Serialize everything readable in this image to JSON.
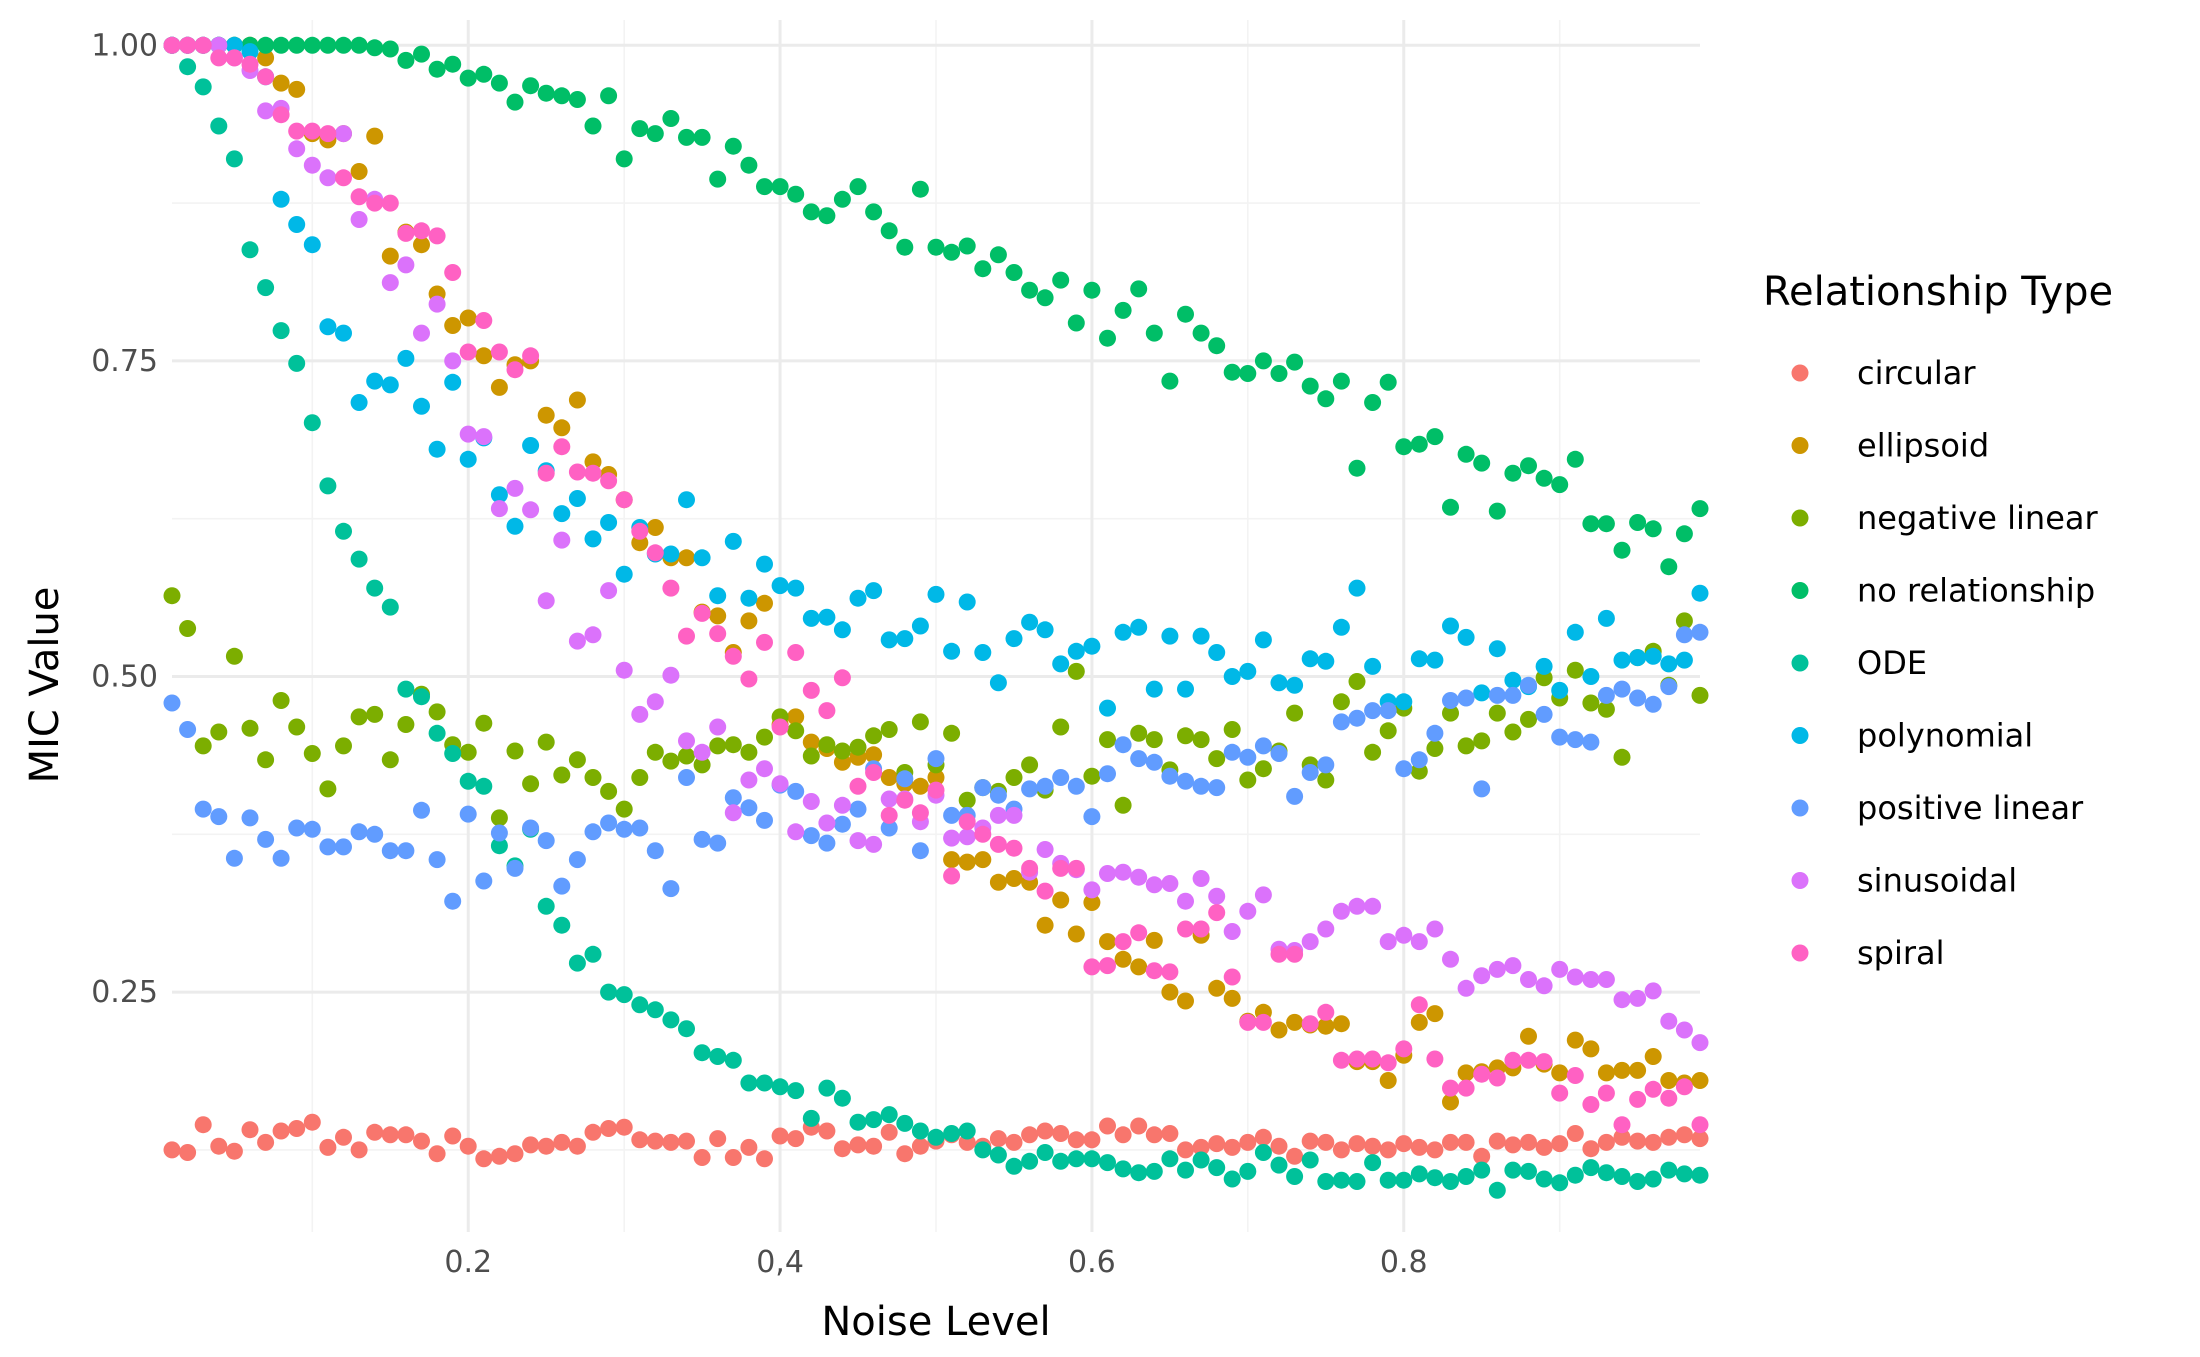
{
  "chart_data": {
    "type": "scatter",
    "title": "",
    "xlabel": "Noise Level",
    "ylabel": "MIC Value",
    "xlim": [
      0.01,
      0.99
    ],
    "ylim": [
      0.06,
      1.02
    ],
    "x_ticks": [
      0.2,
      0.4,
      0.6,
      0.8
    ],
    "x_tick_labels": [
      "0.2",
      "0,4",
      "0.6",
      "0.8"
    ],
    "y_ticks": [
      0.25,
      0.5,
      0.75,
      1.0
    ],
    "y_tick_labels": [
      "0.25",
      "0.50",
      "0.75",
      "1.00"
    ],
    "grid": true,
    "legend": {
      "title": "Relationship Type",
      "position": "right"
    },
    "x_start": 0.01,
    "x_step": 0.01,
    "series": [
      {
        "name": "circular",
        "color": "#F8766D",
        "values": [
          0.125,
          0.123,
          0.145,
          0.128,
          0.124,
          0.141,
          0.131,
          0.14,
          0.142,
          0.147,
          0.127,
          0.135,
          0.125,
          0.139,
          0.137,
          0.137,
          0.132,
          0.122,
          0.136,
          0.128,
          0.118,
          0.12,
          0.122,
          0.129,
          0.128,
          0.131,
          0.128,
          0.139,
          0.142,
          0.143,
          0.133,
          0.132,
          0.131,
          0.132,
          0.119,
          0.134,
          0.119,
          0.127,
          0.118,
          0.136,
          0.134,
          0.143,
          0.14,
          0.126,
          0.129,
          0.128,
          0.139,
          0.122,
          0.128,
          0.132,
          0.137,
          0.131,
          0.128,
          0.134,
          0.131,
          0.137,
          0.14,
          0.138,
          0.133,
          0.133,
          0.144,
          0.137,
          0.144,
          0.137,
          0.138,
          0.125,
          0.127,
          0.13,
          0.127,
          0.131,
          0.135,
          0.128,
          0.12,
          0.132,
          0.131,
          0.125,
          0.13,
          0.128,
          0.125,
          0.13,
          0.127,
          0.125,
          0.131,
          0.131,
          0.12,
          0.132,
          0.129,
          0.131,
          0.127,
          0.13,
          0.138,
          0.126,
          0.131,
          0.135,
          0.132,
          0.131,
          0.135,
          0.137,
          0.134
        ]
      },
      {
        "name": "ellipsoid",
        "color": "#CD9600",
        "values": [
          1.0,
          1.0,
          1.0,
          1.0,
          1.0,
          1.0,
          0.99,
          0.97,
          0.965,
          0.93,
          0.925,
          0.93,
          0.9,
          0.928,
          0.833,
          0.852,
          0.842,
          0.803,
          0.778,
          0.784,
          0.754,
          0.729,
          0.747,
          0.75,
          0.707,
          0.697,
          0.719,
          0.67,
          0.66,
          0.64,
          0.606,
          0.618,
          0.594,
          0.594,
          0.551,
          0.548,
          0.519,
          0.544,
          0.558,
          0.462,
          0.468,
          0.448,
          0.443,
          0.432,
          0.436,
          0.438,
          0.42,
          0.415,
          0.413,
          0.42,
          0.355,
          0.353,
          0.355,
          0.337,
          0.34,
          0.337,
          0.303,
          0.323,
          0.296,
          0.321,
          0.29,
          0.276,
          0.27,
          0.291,
          0.25,
          0.243,
          0.295,
          0.253,
          0.245,
          0.227,
          0.234,
          0.22,
          0.226,
          0.224,
          0.223,
          0.225,
          0.195,
          0.195,
          0.18,
          0.2,
          0.226,
          0.233,
          0.163,
          0.186,
          0.187,
          0.19,
          0.19,
          0.215,
          0.193,
          0.186,
          0.212,
          0.205,
          0.186,
          0.188,
          0.188,
          0.199,
          0.18,
          0.178,
          0.18
        ]
      },
      {
        "name": "negative linear",
        "color": "#7CAE00",
        "values": [
          0.564,
          0.538,
          0.445,
          0.456,
          0.516,
          0.459,
          0.434,
          0.481,
          0.46,
          0.439,
          0.411,
          0.445,
          0.468,
          0.47,
          0.434,
          0.462,
          0.486,
          0.472,
          0.446,
          0.44,
          0.463,
          0.388,
          0.441,
          0.415,
          0.448,
          0.422,
          0.434,
          0.42,
          0.409,
          0.395,
          0.42,
          0.44,
          0.433,
          0.437,
          0.43,
          0.445,
          0.446,
          0.44,
          0.452,
          0.468,
          0.457,
          0.437,
          0.446,
          0.441,
          0.444,
          0.453,
          0.458,
          0.424,
          0.464,
          0.43,
          0.455,
          0.402,
          0.412,
          0.409,
          0.42,
          0.43,
          0.41,
          0.46,
          0.504,
          0.421,
          0.45,
          0.398,
          0.455,
          0.45,
          0.426,
          0.453,
          0.45,
          0.435,
          0.458,
          0.418,
          0.427,
          0.441,
          0.471,
          0.43,
          0.418,
          0.48,
          0.496,
          0.44,
          0.457,
          0.475,
          0.425,
          0.443,
          0.471,
          0.445,
          0.449,
          0.471,
          0.456,
          0.466,
          0.499,
          0.483,
          0.505,
          0.479,
          0.474,
          0.436,
          0.515,
          0.52,
          0.493,
          0.544,
          0.485
        ]
      },
      {
        "name": "no relationship",
        "color": "#00BE67",
        "values": [
          1.0,
          1.0,
          1.0,
          1.0,
          1.0,
          1.0,
          1.0,
          1.0,
          1.0,
          1.0,
          1.0,
          1.0,
          1.0,
          0.998,
          0.997,
          0.988,
          0.993,
          0.981,
          0.985,
          0.974,
          0.977,
          0.97,
          0.955,
          0.968,
          0.962,
          0.96,
          0.957,
          0.936,
          0.96,
          0.91,
          0.934,
          0.93,
          0.942,
          0.927,
          0.927,
          0.894,
          0.92,
          0.905,
          0.888,
          0.888,
          0.882,
          0.868,
          0.865,
          0.878,
          0.888,
          0.868,
          0.853,
          0.84,
          0.886,
          0.84,
          0.836,
          0.841,
          0.823,
          0.834,
          0.82,
          0.806,
          0.8,
          0.814,
          0.78,
          0.806,
          0.768,
          0.79,
          0.807,
          0.772,
          0.734,
          0.787,
          0.772,
          0.762,
          0.741,
          0.74,
          0.75,
          0.74,
          0.749,
          0.73,
          0.72,
          0.734,
          0.665,
          0.717,
          0.733,
          0.682,
          0.684,
          0.69,
          0.634,
          0.676,
          0.669,
          0.631,
          0.661,
          0.667,
          0.657,
          0.652,
          0.672,
          0.621,
          0.621,
          0.6,
          0.622,
          0.617,
          0.587,
          0.613,
          0.633
        ]
      },
      {
        "name": "ODE",
        "color": "#00C19A",
        "values": [
          1.0,
          0.983,
          0.967,
          0.936,
          0.91,
          0.838,
          0.808,
          0.774,
          0.748,
          0.701,
          0.651,
          0.615,
          0.593,
          0.57,
          0.555,
          0.49,
          0.484,
          0.455,
          0.439,
          0.417,
          0.413,
          0.366,
          0.35,
          0.379,
          0.318,
          0.303,
          0.273,
          0.28,
          0.25,
          0.248,
          0.24,
          0.236,
          0.228,
          0.221,
          0.202,
          0.199,
          0.196,
          0.178,
          0.178,
          0.175,
          0.172,
          0.15,
          0.174,
          0.166,
          0.147,
          0.149,
          0.153,
          0.146,
          0.14,
          0.135,
          0.138,
          0.14,
          0.125,
          0.121,
          0.112,
          0.116,
          0.123,
          0.116,
          0.118,
          0.118,
          0.115,
          0.11,
          0.107,
          0.108,
          0.118,
          0.109,
          0.117,
          0.111,
          0.102,
          0.108,
          0.123,
          0.113,
          0.104,
          0.117,
          0.1,
          0.101,
          0.1,
          0.115,
          0.101,
          0.101,
          0.106,
          0.103,
          0.1,
          0.104,
          0.109,
          0.093,
          0.109,
          0.108,
          0.102,
          0.099,
          0.105,
          0.111,
          0.107,
          0.104,
          0.1,
          0.102,
          0.109,
          0.106,
          0.105
        ]
      },
      {
        "name": "polynomial",
        "color": "#00B8E7",
        "values": [
          1.0,
          1.0,
          1.0,
          1.0,
          1.0,
          0.995,
          0.975,
          0.878,
          0.858,
          0.842,
          0.777,
          0.772,
          0.717,
          0.734,
          0.731,
          0.752,
          0.714,
          0.68,
          0.733,
          0.672,
          0.689,
          0.644,
          0.619,
          0.683,
          0.663,
          0.629,
          0.641,
          0.609,
          0.622,
          0.581,
          0.618,
          0.597,
          0.597,
          0.64,
          0.594,
          0.564,
          0.607,
          0.562,
          0.589,
          0.572,
          0.57,
          0.546,
          0.547,
          0.537,
          0.562,
          0.568,
          0.529,
          0.53,
          0.54,
          0.565,
          0.52,
          0.559,
          0.519,
          0.495,
          0.53,
          0.543,
          0.537,
          0.51,
          0.52,
          0.524,
          0.475,
          0.535,
          0.539,
          0.49,
          0.532,
          0.49,
          0.532,
          0.519,
          0.5,
          0.504,
          0.529,
          0.495,
          0.493,
          0.514,
          0.512,
          0.539,
          0.57,
          0.508,
          0.48,
          0.48,
          0.514,
          0.513,
          0.54,
          0.531,
          0.487,
          0.522,
          0.497,
          0.492,
          0.508,
          0.489,
          0.535,
          0.5,
          0.546,
          0.513,
          0.515,
          0.516,
          0.51,
          0.513,
          0.566
        ]
      },
      {
        "name": "positive linear",
        "color": "#619CFF",
        "values": [
          0.479,
          0.458,
          0.395,
          0.389,
          0.356,
          0.388,
          0.371,
          0.356,
          0.38,
          0.379,
          0.365,
          0.365,
          0.377,
          0.375,
          0.362,
          0.362,
          0.394,
          0.355,
          0.322,
          0.391,
          0.338,
          0.376,
          0.348,
          0.38,
          0.37,
          0.334,
          0.355,
          0.377,
          0.384,
          0.379,
          0.38,
          0.362,
          0.332,
          0.42,
          0.371,
          0.368,
          0.404,
          0.396,
          0.386,
          0.414,
          0.409,
          0.374,
          0.368,
          0.383,
          0.395,
          0.427,
          0.38,
          0.419,
          0.362,
          0.435,
          0.39,
          0.39,
          0.412,
          0.406,
          0.395,
          0.411,
          0.413,
          0.42,
          0.413,
          0.389,
          0.423,
          0.446,
          0.435,
          0.432,
          0.421,
          0.417,
          0.413,
          0.412,
          0.44,
          0.436,
          0.445,
          0.439,
          0.405,
          0.424,
          0.43,
          0.464,
          0.467,
          0.473,
          0.473,
          0.427,
          0.434,
          0.455,
          0.481,
          0.483,
          0.411,
          0.485,
          0.485,
          0.493,
          0.47,
          0.452,
          0.45,
          0.448,
          0.485,
          0.49,
          0.483,
          0.478,
          0.492,
          0.533,
          0.535
        ]
      },
      {
        "name": "sinusoidal",
        "color": "#DB72FB",
        "values": [
          1.0,
          1.0,
          1.0,
          1.0,
          0.99,
          0.98,
          0.948,
          0.95,
          0.918,
          0.905,
          0.895,
          0.93,
          0.862,
          0.878,
          0.812,
          0.826,
          0.772,
          0.795,
          0.75,
          0.692,
          0.69,
          0.633,
          0.649,
          0.632,
          0.56,
          0.608,
          0.528,
          0.533,
          0.568,
          0.505,
          0.47,
          0.48,
          0.501,
          0.449,
          0.44,
          0.46,
          0.392,
          0.418,
          0.427,
          0.415,
          0.377,
          0.401,
          0.384,
          0.398,
          0.37,
          0.367,
          0.403,
          0.403,
          0.385,
          0.406,
          0.372,
          0.373,
          0.38,
          0.39,
          0.39,
          0.345,
          0.363,
          0.352,
          0.347,
          0.331,
          0.344,
          0.345,
          0.341,
          0.335,
          0.336,
          0.322,
          0.34,
          0.326,
          0.298,
          0.314,
          0.327,
          0.284,
          0.283,
          0.29,
          0.3,
          0.314,
          0.318,
          0.318,
          0.29,
          0.295,
          0.29,
          0.3,
          0.276,
          0.253,
          0.263,
          0.268,
          0.271,
          0.26,
          0.255,
          0.268,
          0.262,
          0.26,
          0.26,
          0.244,
          0.245,
          0.251,
          0.227,
          0.22,
          0.21
        ]
      },
      {
        "name": "spiral",
        "color": "#FF61C3",
        "values": [
          1.0,
          1.0,
          1.0,
          0.99,
          0.99,
          0.985,
          0.975,
          0.945,
          0.932,
          0.932,
          0.93,
          0.895,
          0.88,
          0.875,
          0.875,
          0.851,
          0.853,
          0.849,
          0.82,
          0.757,
          0.782,
          0.757,
          0.743,
          0.754,
          0.661,
          0.682,
          0.662,
          0.661,
          0.655,
          0.64,
          0.615,
          0.598,
          0.57,
          0.532,
          0.55,
          0.534,
          0.516,
          0.498,
          0.527,
          0.46,
          0.519,
          0.489,
          0.473,
          0.499,
          0.413,
          0.424,
          0.39,
          0.402,
          0.392,
          0.41,
          0.342,
          0.385,
          0.375,
          0.367,
          0.364,
          0.348,
          0.33,
          0.348,
          0.348,
          0.27,
          0.271,
          0.29,
          0.297,
          0.267,
          0.266,
          0.3,
          0.3,
          0.313,
          0.262,
          0.226,
          0.226,
          0.28,
          0.28,
          0.225,
          0.234,
          0.196,
          0.197,
          0.197,
          0.194,
          0.205,
          0.24,
          0.197,
          0.174,
          0.174,
          0.185,
          0.182,
          0.196,
          0.196,
          0.195,
          0.17,
          0.184,
          0.161,
          0.17,
          0.145,
          0.165,
          0.173,
          0.166,
          0.175,
          0.145
        ]
      }
    ]
  }
}
